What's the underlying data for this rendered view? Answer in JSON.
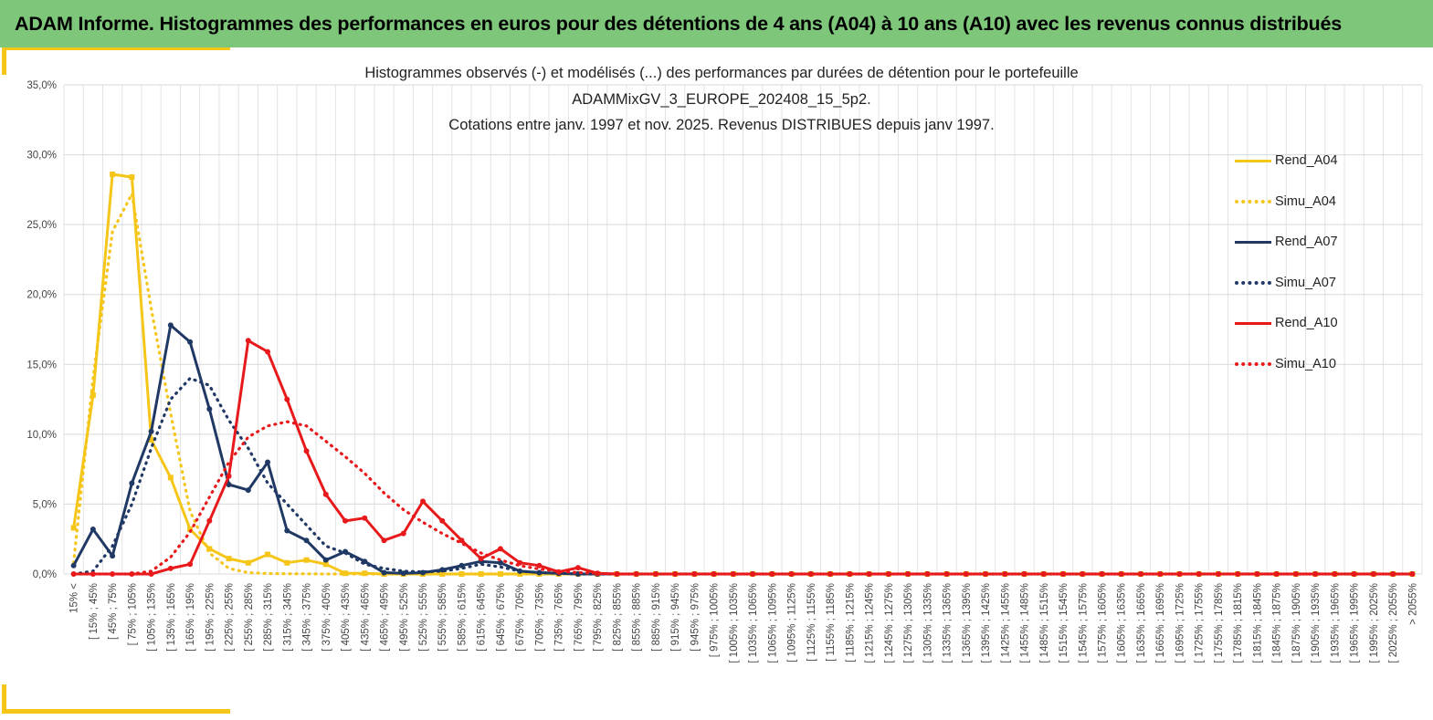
{
  "banner": {
    "title": "ADAM Informe. Histogrammes des performances en euros pour des détentions de 4 ans (A04) à 10 ans (A10) avec les revenus connus distribués",
    "color": "#7dc67a"
  },
  "chart_data": {
    "type": "line",
    "title": [
      "Histogrammes observés (-) et modélisés (...) des performances par durées de détention pour le portefeuille",
      "ADAMMixGV_3_EUROPE_202408_15_5p2.",
      "Cotations entre janv. 1997 et nov. 2025. Revenus DISTRIBUES depuis janv 1997."
    ],
    "xlabel": "",
    "ylabel": "",
    "ylim": [
      0,
      35
    ],
    "yticks": [
      "0,0%",
      "5,0%",
      "10,0%",
      "15,0%",
      "20,0%",
      "25,0%",
      "30,0%",
      "35,0%"
    ],
    "grid": true,
    "legend_position": "right",
    "categories": [
      "15% <",
      "[ 15% ; 45%",
      "[ 45% ; 75%",
      "[ 75% ; 105%",
      "[ 105% ; 135%",
      "[ 135% ; 165%",
      "[ 165% ; 195%",
      "[ 195% ; 225%",
      "[ 225% ; 255%",
      "[ 255% ; 285%",
      "[ 285% ; 315%",
      "[ 315% ; 345%",
      "[ 345% ; 375%",
      "[ 375% ; 405%",
      "[ 405% ; 435%",
      "[ 435% ; 465%",
      "[ 465% ; 495%",
      "[ 495% ; 525%",
      "[ 525% ; 555%",
      "[ 555% ; 585%",
      "[ 585% ; 615%",
      "[ 615% ; 645%",
      "[ 645% ; 675%",
      "[ 675% ; 705%",
      "[ 705% ; 735%",
      "[ 735% ; 765%",
      "[ 765% ; 795%",
      "[ 795% ; 825%",
      "[ 825% ; 855%",
      "[ 855% ; 885%",
      "[ 885% ; 915%",
      "[ 915% ; 945%",
      "[ 945% ; 975%",
      "[ 975% ; 1005%",
      "[ 1005% ; 1035%",
      "[ 1035% ; 1065%",
      "[ 1065% ; 1095%",
      "[ 1095% ; 1125%",
      "[ 1125% ; 1155%",
      "[ 1155% ; 1185%",
      "[ 1185% ; 1215%",
      "[ 1215% ; 1245%",
      "[ 1245% ; 1275%",
      "[ 1275% ; 1305%",
      "[ 1305% ; 1335%",
      "[ 1335% ; 1365%",
      "[ 1365% ; 1395%",
      "[ 1395% ; 1425%",
      "[ 1425% ; 1455%",
      "[ 1455% ; 1485%",
      "[ 1485% ; 1515%",
      "[ 1515% ; 1545%",
      "[ 1545% ; 1575%",
      "[ 1575% ; 1605%",
      "[ 1605% ; 1635%",
      "[ 1635% ; 1665%",
      "[ 1665% ; 1695%",
      "[ 1695% ; 1725%",
      "[ 1725% ; 1755%",
      "[ 1755% ; 1785%",
      "[ 1785% ; 1815%",
      "[ 1815% ; 1845%",
      "[ 1845% ; 1875%",
      "[ 1875% ; 1905%",
      "[ 1905% ; 1935%",
      "[ 1935% ; 1965%",
      "[ 1965% ; 1995%",
      "[ 1995% ; 2025%",
      "[ 2025% ; 2055%",
      "> 2055%"
    ],
    "series": [
      {
        "name": "Rend_A04",
        "style": "solid",
        "color": "#f5c518",
        "values": [
          3.3,
          12.8,
          28.6,
          28.4,
          9.6,
          6.9,
          3.2,
          1.8,
          1.1,
          0.8,
          1.4,
          0.8,
          1.0,
          0.7,
          0.05,
          0.05,
          0,
          0,
          0,
          0,
          0,
          0,
          0,
          0,
          0,
          0,
          0,
          0,
          0,
          0,
          0,
          0,
          0,
          0,
          0,
          0,
          0,
          0,
          0,
          0,
          0,
          0,
          0,
          0,
          0,
          0,
          0,
          0,
          0,
          0,
          0,
          0,
          0,
          0,
          0,
          0,
          0,
          0,
          0,
          0,
          0,
          0,
          0,
          0,
          0,
          0,
          0,
          0,
          0,
          0
        ]
      },
      {
        "name": "Simu_A04",
        "style": "dotted",
        "color": "#f5c518",
        "values": [
          0.8,
          14.0,
          24.5,
          27.2,
          19.0,
          11.5,
          4.5,
          1.5,
          0.4,
          0.1,
          0.03,
          0.02,
          0.01,
          0.0,
          0,
          0,
          0,
          0,
          0,
          0,
          0,
          0,
          0,
          0,
          0,
          0,
          0,
          0,
          0,
          0,
          0,
          0,
          0,
          0,
          0,
          0,
          0,
          0,
          0,
          0,
          0,
          0,
          0,
          0,
          0,
          0,
          0,
          0,
          0,
          0,
          0,
          0,
          0,
          0,
          0,
          0,
          0,
          0,
          0,
          0,
          0,
          0,
          0,
          0,
          0,
          0,
          0,
          0,
          0,
          0
        ]
      },
      {
        "name": "Rend_A07",
        "style": "solid",
        "color": "#1f3864",
        "values": [
          0.6,
          3.2,
          1.3,
          6.5,
          10.2,
          17.8,
          16.6,
          11.8,
          6.4,
          6.0,
          8.0,
          3.1,
          2.4,
          1.0,
          1.6,
          0.9,
          0.1,
          0.05,
          0.1,
          0.3,
          0.6,
          0.9,
          0.8,
          0.2,
          0.1,
          0.05,
          0.0,
          0,
          0,
          0,
          0,
          0,
          0,
          0,
          0,
          0,
          0,
          0,
          0,
          0,
          0,
          0,
          0,
          0,
          0,
          0,
          0,
          0,
          0,
          0,
          0,
          0,
          0,
          0,
          0,
          0,
          0,
          0,
          0,
          0,
          0,
          0,
          0,
          0,
          0,
          0,
          0,
          0,
          0,
          0
        ]
      },
      {
        "name": "Simu_A07",
        "style": "dotted",
        "color": "#1f3864",
        "values": [
          0.0,
          0.2,
          2.0,
          5.0,
          9.0,
          12.5,
          14.0,
          13.5,
          11.0,
          9.0,
          6.5,
          5.0,
          3.5,
          2.0,
          1.5,
          0.7,
          0.4,
          0.2,
          0.15,
          0.2,
          0.4,
          0.7,
          0.5,
          0.2,
          0.1,
          0.05,
          0.0,
          0,
          0,
          0,
          0,
          0,
          0,
          0,
          0,
          0,
          0,
          0,
          0,
          0,
          0,
          0,
          0,
          0,
          0,
          0,
          0,
          0,
          0,
          0,
          0,
          0,
          0,
          0,
          0,
          0,
          0,
          0,
          0,
          0,
          0,
          0,
          0,
          0,
          0,
          0,
          0,
          0,
          0,
          0
        ]
      },
      {
        "name": "Rend_A10",
        "style": "solid",
        "color": "#e8191b",
        "values": [
          0.0,
          0.0,
          0.0,
          0.0,
          0.0,
          0.4,
          0.7,
          3.8,
          7.0,
          16.7,
          15.9,
          12.5,
          8.8,
          5.7,
          3.8,
          4.0,
          2.4,
          2.9,
          5.2,
          3.8,
          2.4,
          1.1,
          1.8,
          0.8,
          0.6,
          0.15,
          0.45,
          0.05,
          0,
          0,
          0,
          0,
          0,
          0,
          0,
          0,
          0,
          0,
          0,
          0,
          0,
          0,
          0,
          0,
          0,
          0,
          0,
          0,
          0,
          0,
          0,
          0,
          0,
          0,
          0,
          0,
          0,
          0,
          0,
          0,
          0,
          0,
          0,
          0,
          0,
          0,
          0,
          0,
          0,
          0
        ]
      },
      {
        "name": "Simu_A10",
        "style": "dotted",
        "color": "#e8191b",
        "values": [
          0.0,
          0.0,
          0.0,
          0.0,
          0.2,
          1.2,
          3.0,
          5.5,
          8.0,
          9.8,
          10.6,
          10.9,
          10.6,
          9.5,
          8.4,
          7.2,
          5.8,
          4.6,
          3.7,
          2.9,
          2.2,
          1.5,
          1.0,
          0.6,
          0.35,
          0.2,
          0.1,
          0.05,
          0.0,
          0,
          0,
          0,
          0,
          0,
          0,
          0,
          0,
          0,
          0,
          0,
          0,
          0,
          0,
          0,
          0,
          0,
          0,
          0,
          0,
          0,
          0,
          0,
          0,
          0,
          0,
          0,
          0,
          0,
          0,
          0,
          0,
          0,
          0,
          0,
          0,
          0,
          0,
          0,
          0,
          0
        ]
      }
    ]
  }
}
